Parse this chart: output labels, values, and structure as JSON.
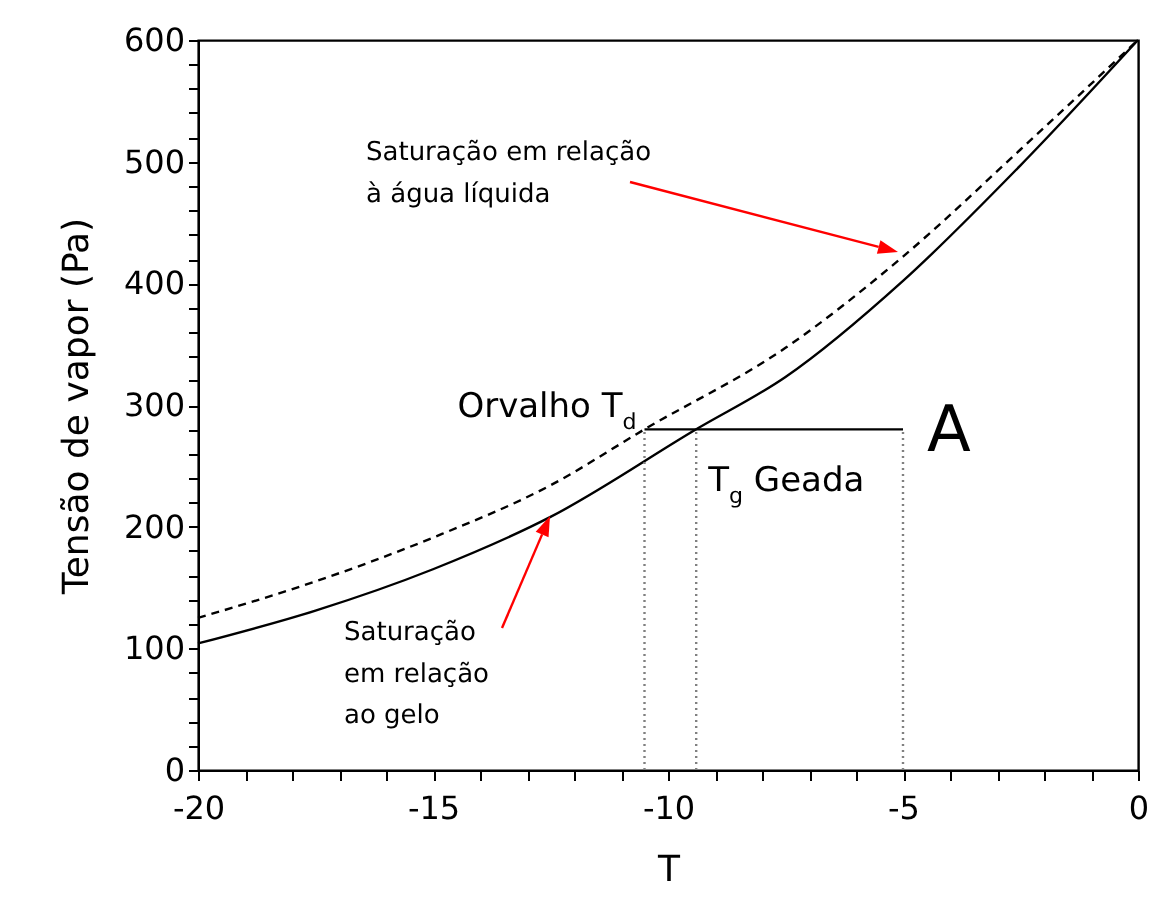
{
  "chart_data": {
    "type": "line",
    "xlabel": "T",
    "ylabel": "Tensão de vapor (Pa)",
    "xlim": [
      -20,
      0
    ],
    "ylim": [
      0,
      600
    ],
    "xticks": [
      -20,
      {
        "value": -19,
        "label": null
      },
      {
        "value": -18,
        "label": null
      },
      {
        "value": -17,
        "label": null
      },
      {
        "value": -16,
        "label": null
      },
      -15,
      {
        "value": -14,
        "label": null
      },
      {
        "value": -13,
        "label": null
      },
      {
        "value": -12,
        "label": null
      },
      {
        "value": -11,
        "label": null
      },
      -10,
      {
        "value": -9,
        "label": null
      },
      {
        "value": -8,
        "label": null
      },
      {
        "value": -7,
        "label": null
      },
      {
        "value": -6,
        "label": null
      },
      -5,
      {
        "value": -4,
        "label": null
      },
      {
        "value": -3,
        "label": null
      },
      {
        "value": -2,
        "label": null
      },
      {
        "value": -1,
        "label": null
      },
      0
    ],
    "yticks": [
      0,
      {
        "value": 20,
        "label": null
      },
      {
        "value": 40,
        "label": null
      },
      {
        "value": 60,
        "label": null
      },
      {
        "value": 80,
        "label": null
      },
      100,
      {
        "value": 120,
        "label": null
      },
      {
        "value": 140,
        "label": null
      },
      {
        "value": 160,
        "label": null
      },
      {
        "value": 180,
        "label": null
      },
      200,
      {
        "value": 220,
        "label": null
      },
      {
        "value": 240,
        "label": null
      },
      {
        "value": 260,
        "label": null
      },
      {
        "value": 280,
        "label": null
      },
      300,
      {
        "value": 320,
        "label": null
      },
      {
        "value": 340,
        "label": null
      },
      {
        "value": 360,
        "label": null
      },
      {
        "value": 380,
        "label": null
      },
      400,
      {
        "value": 420,
        "label": null
      },
      {
        "value": 440,
        "label": null
      },
      {
        "value": 460,
        "label": null
      },
      {
        "value": 480,
        "label": null
      },
      500,
      {
        "value": 520,
        "label": null
      },
      {
        "value": 540,
        "label": null
      },
      {
        "value": 560,
        "label": null
      },
      {
        "value": 580,
        "label": null
      },
      600
    ],
    "series": [
      {
        "color": "#000000",
        "line_style": "dashed",
        "x": [
          -20,
          -17.5,
          -15,
          -12.5,
          -10.5,
          -7.5,
          -5,
          -2.5,
          0
        ],
        "values": [
          125,
          155,
          191,
          234,
          280,
          347,
          422,
          510,
          600
        ]
      },
      {
        "color": "#000000",
        "line_style": "solid",
        "x": [
          -20,
          -17.5,
          -15,
          -12.5,
          -9.4,
          -7.5,
          -5,
          -2.5,
          0
        ],
        "values": [
          104,
          131,
          165,
          208,
          280,
          323,
          402,
          497,
          600
        ]
      },
      {
        "color": "#000000",
        "line_style": "solid",
        "x": [
          -10.5,
          -5
        ],
        "values": [
          280,
          280
        ]
      },
      {
        "color": "#808080",
        "line_style": "dotted",
        "x": [
          -10.5,
          -10.5
        ],
        "values": [
          0,
          280
        ]
      },
      {
        "color": "#808080",
        "line_style": "dotted",
        "x": [
          -9.4,
          -9.4
        ],
        "values": [
          0,
          280
        ]
      },
      {
        "color": "#808080",
        "line_style": "dotted",
        "x": [
          -5,
          -5
        ],
        "values": [
          0,
          280
        ]
      }
    ],
    "annotations": [
      "Saturação em relação\nà água líquida",
      {
        "text": "Orvalho T$_{d}$",
        "x": -10.5,
        "y": 280
      },
      {
        "text": "T$_{g}$ Geada",
        "x": -9.4,
        "y": 280
      },
      {
        "text": "A",
        "x": -5,
        "y": 280
      },
      "Saturação\nem relação\nao gelo"
    ],
    "grid": false
  }
}
